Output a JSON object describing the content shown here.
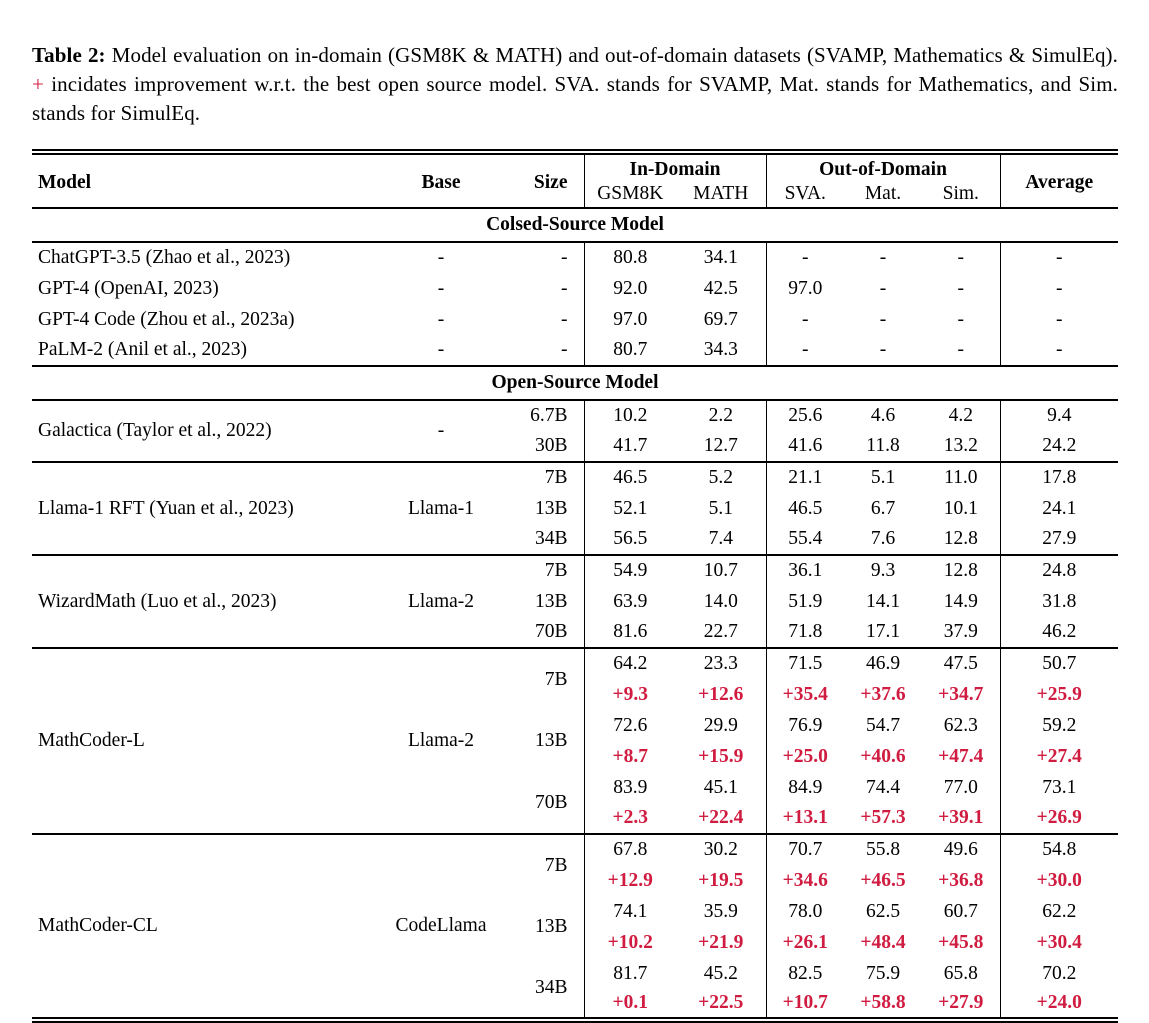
{
  "colors": {
    "accent_red": "#d01c40"
  },
  "caption": {
    "label": "Table 2:",
    "text_before_plus": "Model evaluation on in-domain (GSM8K & MATH) and out-of-domain datasets (SVAMP, Mathematics & SimulEq).",
    "plus_sign": "+",
    "text_after_plus": "incidates improvement w.r.t. the best open source model. SVA. stands for SVAMP, Mat. stands for Mathematics, and Sim. stands for SimulEq."
  },
  "table": {
    "head": {
      "model": "Model",
      "base": "Base",
      "size": "Size",
      "in_domain": "In-Domain",
      "out_of_domain": "Out-of-Domain",
      "average": "Average",
      "sub_columns": [
        "GSM8K",
        "MATH",
        "SVA.",
        "Mat.",
        "Sim."
      ]
    },
    "closed": {
      "title": "Colsed-Source Model",
      "rows": [
        {
          "model": "ChatGPT-3.5 (Zhao et al., 2023)",
          "base": "-",
          "size": "-",
          "v": [
            "80.8",
            "34.1",
            "-",
            "-",
            "-",
            "-"
          ]
        },
        {
          "model": "GPT-4 (OpenAI, 2023)",
          "base": "-",
          "size": "-",
          "v": [
            "92.0",
            "42.5",
            "97.0",
            "-",
            "-",
            "-"
          ]
        },
        {
          "model": "GPT-4 Code (Zhou et al., 2023a)",
          "base": "-",
          "size": "-",
          "v": [
            "97.0",
            "69.7",
            "-",
            "-",
            "-",
            "-"
          ]
        },
        {
          "model": "PaLM-2 (Anil et al., 2023)",
          "base": "-",
          "size": "-",
          "v": [
            "80.7",
            "34.3",
            "-",
            "-",
            "-",
            "-"
          ]
        }
      ]
    },
    "open": {
      "title": "Open-Source Model",
      "groups": [
        {
          "model": "Galactica (Taylor et al., 2022)",
          "base": "-",
          "rows": [
            {
              "size": "6.7B",
              "v": [
                "10.2",
                "2.2",
                "25.6",
                "4.6",
                "4.2",
                "9.4"
              ]
            },
            {
              "size": "30B",
              "v": [
                "41.7",
                "12.7",
                "41.6",
                "11.8",
                "13.2",
                "24.2"
              ]
            }
          ]
        },
        {
          "model": "Llama-1 RFT (Yuan et al., 2023)",
          "base": "Llama-1",
          "rows": [
            {
              "size": "7B",
              "v": [
                "46.5",
                "5.2",
                "21.1",
                "5.1",
                "11.0",
                "17.8"
              ]
            },
            {
              "size": "13B",
              "v": [
                "52.1",
                "5.1",
                "46.5",
                "6.7",
                "10.1",
                "24.1"
              ]
            },
            {
              "size": "34B",
              "v": [
                "56.5",
                "7.4",
                "55.4",
                "7.6",
                "12.8",
                "27.9"
              ]
            }
          ]
        },
        {
          "model": "WizardMath (Luo et al., 2023)",
          "base": "Llama-2",
          "rows": [
            {
              "size": "7B",
              "v": [
                "54.9",
                "10.7",
                "36.1",
                "9.3",
                "12.8",
                "24.8"
              ]
            },
            {
              "size": "13B",
              "v": [
                "63.9",
                "14.0",
                "51.9",
                "14.1",
                "14.9",
                "31.8"
              ]
            },
            {
              "size": "70B",
              "v": [
                "81.6",
                "22.7",
                "71.8",
                "17.1",
                "37.9",
                "46.2"
              ]
            }
          ]
        },
        {
          "model": "MathCoder-L",
          "base": "Llama-2",
          "rows": [
            {
              "size": "7B",
              "v": [
                "64.2",
                "23.3",
                "71.5",
                "46.9",
                "47.5",
                "50.7"
              ],
              "delta": [
                "+9.3",
                "+12.6",
                "+35.4",
                "+37.6",
                "+34.7",
                "+25.9"
              ]
            },
            {
              "size": "13B",
              "v": [
                "72.6",
                "29.9",
                "76.9",
                "54.7",
                "62.3",
                "59.2"
              ],
              "delta": [
                "+8.7",
                "+15.9",
                "+25.0",
                "+40.6",
                "+47.4",
                "+27.4"
              ]
            },
            {
              "size": "70B",
              "v": [
                "83.9",
                "45.1",
                "84.9",
                "74.4",
                "77.0",
                "73.1"
              ],
              "delta": [
                "+2.3",
                "+22.4",
                "+13.1",
                "+57.3",
                "+39.1",
                "+26.9"
              ]
            }
          ]
        },
        {
          "model": "MathCoder-CL",
          "base": "CodeLlama",
          "rows": [
            {
              "size": "7B",
              "v": [
                "67.8",
                "30.2",
                "70.7",
                "55.8",
                "49.6",
                "54.8"
              ],
              "delta": [
                "+12.9",
                "+19.5",
                "+34.6",
                "+46.5",
                "+36.8",
                "+30.0"
              ]
            },
            {
              "size": "13B",
              "v": [
                "74.1",
                "35.9",
                "78.0",
                "62.5",
                "60.7",
                "62.2"
              ],
              "delta": [
                "+10.2",
                "+21.9",
                "+26.1",
                "+48.4",
                "+45.8",
                "+30.4"
              ]
            },
            {
              "size": "34B",
              "v": [
                "81.7",
                "45.2",
                "82.5",
                "75.9",
                "65.8",
                "70.2"
              ],
              "delta": [
                "+0.1",
                "+22.5",
                "+10.7",
                "+58.8",
                "+27.9",
                "+24.0"
              ]
            }
          ]
        }
      ]
    }
  }
}
